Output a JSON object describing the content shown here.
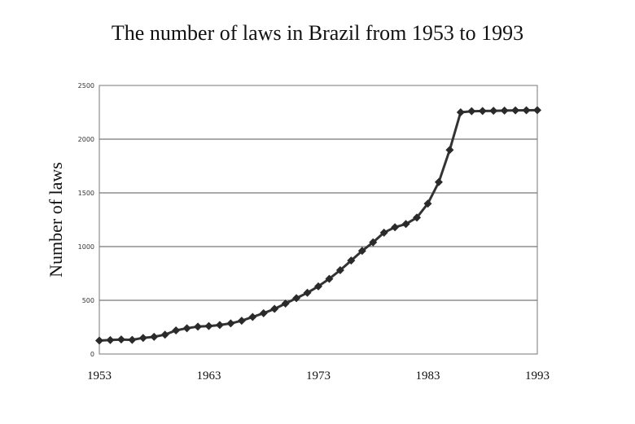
{
  "chart_data": {
    "type": "line",
    "title": "The number of laws in Brazil from 1953 to 1993",
    "xlabel": "",
    "ylabel": "Number of laws",
    "xlim": [
      1953,
      1993
    ],
    "ylim": [
      0,
      2500
    ],
    "x_ticks": [
      "1953",
      "1963",
      "1973",
      "1983",
      "1993"
    ],
    "y_ticks": [
      "0",
      "500",
      "1000",
      "1500",
      "2000",
      "2500"
    ],
    "grid": true,
    "colors": {
      "line": "#333333",
      "marker": "#2a2a2a",
      "grid": "#555555"
    },
    "series": [
      {
        "x": [
          1953,
          1954,
          1955,
          1956,
          1957,
          1958,
          1959,
          1960,
          1961,
          1962,
          1963,
          1964,
          1965,
          1966,
          1967,
          1968,
          1969,
          1970,
          1971,
          1972,
          1973,
          1974,
          1975,
          1976,
          1977,
          1978,
          1979,
          1980,
          1981,
          1982,
          1983,
          1984,
          1985,
          1986,
          1987,
          1988,
          1989,
          1990,
          1991,
          1992,
          1993
        ],
        "values": [
          125,
          130,
          135,
          132,
          150,
          160,
          180,
          220,
          240,
          255,
          260,
          270,
          285,
          310,
          345,
          380,
          420,
          470,
          520,
          570,
          630,
          700,
          780,
          870,
          960,
          1040,
          1130,
          1180,
          1210,
          1270,
          1400,
          1600,
          1900,
          2250,
          2260,
          2262,
          2264,
          2266,
          2268,
          2269,
          2270
        ]
      }
    ]
  }
}
